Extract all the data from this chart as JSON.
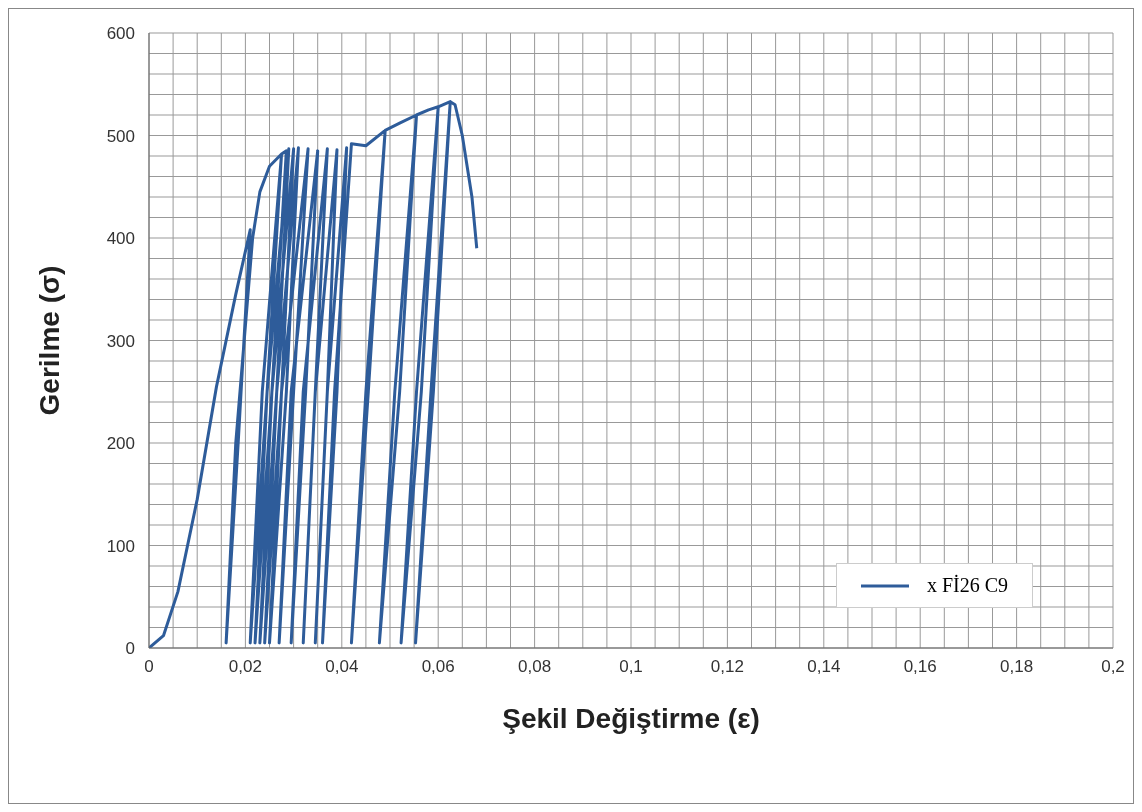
{
  "chart_data": {
    "type": "line",
    "xlabel": "Şekil Değiştirme (ε)",
    "ylabel": "Gerilme (σ)",
    "grid": true,
    "legend": "bottom right",
    "marker": "none",
    "line_style": "solid",
    "xlim": [
      0,
      0.2
    ],
    "ylim": [
      0,
      600
    ],
    "xticks": [
      0,
      {
        "value": 0.005,
        "label": null
      },
      {
        "value": 0.01,
        "label": null
      },
      {
        "value": 0.015,
        "label": null
      },
      {
        "value": 0.02,
        "label": "0,02"
      },
      {
        "value": 0.025,
        "label": null
      },
      {
        "value": 0.03,
        "label": null
      },
      {
        "value": 0.035,
        "label": null
      },
      {
        "value": 0.04,
        "label": "0,04"
      },
      {
        "value": 0.045,
        "label": null
      },
      {
        "value": 0.05,
        "label": null
      },
      {
        "value": 0.055,
        "label": null
      },
      {
        "value": 0.06,
        "label": "0,06"
      },
      {
        "value": 0.065,
        "label": null
      },
      {
        "value": 0.07,
        "label": null
      },
      {
        "value": 0.075,
        "label": null
      },
      {
        "value": 0.08,
        "label": "0,08"
      },
      {
        "value": 0.085,
        "label": null
      },
      {
        "value": 0.09,
        "label": null
      },
      {
        "value": 0.095,
        "label": null
      },
      {
        "value": 0.1,
        "label": "0,1"
      },
      {
        "value": 0.105,
        "label": null
      },
      {
        "value": 0.11,
        "label": null
      },
      {
        "value": 0.115,
        "label": null
      },
      {
        "value": 0.12,
        "label": "0,12"
      },
      {
        "value": 0.125,
        "label": null
      },
      {
        "value": 0.13,
        "label": null
      },
      {
        "value": 0.135,
        "label": null
      },
      {
        "value": 0.14,
        "label": "0,14"
      },
      {
        "value": 0.145,
        "label": null
      },
      {
        "value": 0.15,
        "label": null
      },
      {
        "value": 0.155,
        "label": null
      },
      {
        "value": 0.16,
        "label": "0,16"
      },
      {
        "value": 0.165,
        "label": null
      },
      {
        "value": 0.17,
        "label": null
      },
      {
        "value": 0.175,
        "label": null
      },
      {
        "value": 0.18,
        "label": "0,18"
      },
      {
        "value": 0.185,
        "label": null
      },
      {
        "value": 0.19,
        "label": null
      },
      {
        "value": 0.195,
        "label": null
      },
      {
        "value": 0.2,
        "label": "0,2"
      }
    ],
    "yticks": [
      0,
      {
        "value": 20,
        "label": null
      },
      {
        "value": 40,
        "label": null
      },
      {
        "value": 60,
        "label": null
      },
      {
        "value": 80,
        "label": null
      },
      100,
      {
        "value": 120,
        "label": null
      },
      {
        "value": 140,
        "label": null
      },
      {
        "value": 160,
        "label": null
      },
      {
        "value": 180,
        "label": null
      },
      200,
      {
        "value": 220,
        "label": null
      },
      {
        "value": 240,
        "label": null
      },
      {
        "value": 260,
        "label": null
      },
      {
        "value": 280,
        "label": null
      },
      300,
      {
        "value": 320,
        "label": null
      },
      {
        "value": 340,
        "label": null
      },
      {
        "value": 360,
        "label": null
      },
      {
        "value": 380,
        "label": null
      },
      400,
      {
        "value": 420,
        "label": null
      },
      {
        "value": 440,
        "label": null
      },
      {
        "value": 460,
        "label": null
      },
      {
        "value": 480,
        "label": null
      },
      500,
      {
        "value": 520,
        "label": null
      },
      {
        "value": 540,
        "label": null
      },
      {
        "value": 560,
        "label": null
      },
      {
        "value": 580,
        "label": null
      },
      600
    ],
    "series": [
      {
        "name": "x Fİ26 C9",
        "color": "#2e5c9a",
        "x": [
          0,
          0.003,
          0.006,
          0.01,
          0.014,
          0.018,
          0.021,
          0.0185,
          0.016,
          0.018,
          0.0215,
          0.023,
          0.025,
          0.0275,
          0.0245,
          0.021,
          0.0235,
          0.0275,
          0.0285,
          0.0255,
          0.022,
          0.0245,
          0.029,
          0.0265,
          0.023,
          0.0255,
          0.03,
          0.0275,
          0.024,
          0.0265,
          0.031,
          0.0285,
          0.025,
          0.0275,
          0.033,
          0.03,
          0.027,
          0.0295,
          0.035,
          0.0325,
          0.0295,
          0.032,
          0.037,
          0.0345,
          0.032,
          0.0345,
          0.039,
          0.037,
          0.0345,
          0.037,
          0.041,
          0.039,
          0.036,
          0.0385,
          0.042,
          0.045,
          0.049,
          0.0455,
          0.042,
          0.045,
          0.049,
          0.052,
          0.0555,
          0.052,
          0.0478,
          0.051,
          0.0555,
          0.058,
          0.06,
          0.0565,
          0.0523,
          0.0555,
          0.06,
          0.0625,
          0.059,
          0.0553,
          0.0585,
          0.0625,
          0.0635,
          0.065,
          0.067,
          0.068
        ],
        "values": [
          0,
          12,
          55,
          145,
          255,
          345,
          408,
          200,
          5,
          200,
          400,
          445,
          470,
          482,
          250,
          5,
          250,
          482,
          485,
          250,
          5,
          250,
          487,
          250,
          5,
          250,
          487,
          250,
          5,
          250,
          488,
          250,
          5,
          250,
          487,
          250,
          5,
          250,
          485,
          250,
          5,
          250,
          487,
          250,
          5,
          250,
          486,
          250,
          5,
          250,
          488,
          250,
          5,
          250,
          492,
          490,
          505,
          250,
          5,
          250,
          505,
          512,
          520,
          250,
          5,
          250,
          520,
          525,
          528,
          250,
          5,
          250,
          528,
          533,
          250,
          5,
          250,
          533,
          530,
          500,
          440,
          390
        ]
      }
    ]
  }
}
